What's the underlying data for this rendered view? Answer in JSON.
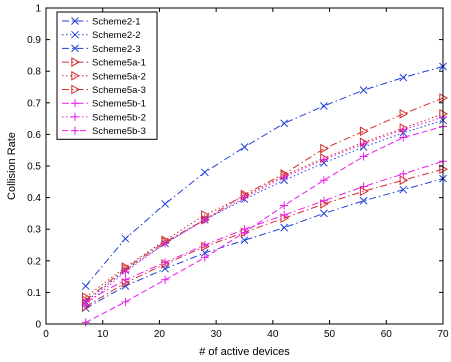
{
  "chart_data": {
    "type": "line",
    "xlabel": "# of active devices",
    "ylabel": "Collision Rate",
    "xlim": [
      0,
      70
    ],
    "ylim": [
      0,
      1
    ],
    "xticks": [
      0,
      10,
      20,
      30,
      40,
      50,
      60,
      70
    ],
    "yticks": [
      0,
      0.1,
      0.2,
      0.3,
      0.4,
      0.5,
      0.6,
      0.7,
      0.8,
      0.9,
      1
    ],
    "grid": false,
    "legend_position": "top-left",
    "x": [
      7,
      14,
      21,
      28,
      35,
      42,
      49,
      56,
      63,
      70
    ],
    "series": [
      {
        "name": "Scheme2-1",
        "color": "#1f3fd8",
        "dash": "dashdot",
        "marker": "x",
        "values": [
          0.12,
          0.27,
          0.38,
          0.48,
          0.56,
          0.635,
          0.69,
          0.74,
          0.78,
          0.815
        ]
      },
      {
        "name": "Scheme2-2",
        "color": "#1f3fd8",
        "dash": "dotted",
        "marker": "x",
        "values": [
          0.07,
          0.17,
          0.255,
          0.33,
          0.395,
          0.455,
          0.51,
          0.56,
          0.605,
          0.645
        ]
      },
      {
        "name": "Scheme2-3",
        "color": "#1f3fd8",
        "dash": "dashdot",
        "marker": "x",
        "values": [
          0.05,
          0.12,
          0.175,
          0.225,
          0.265,
          0.305,
          0.35,
          0.39,
          0.425,
          0.46
        ]
      },
      {
        "name": "Scheme5a-1",
        "color": "#d42a2a",
        "dash": "dashdot",
        "marker": "triangle-right",
        "values": [
          0.075,
          0.175,
          0.26,
          0.33,
          0.41,
          0.475,
          0.555,
          0.61,
          0.665,
          0.715
        ]
      },
      {
        "name": "Scheme5a-2",
        "color": "#d42a2a",
        "dash": "dotted",
        "marker": "triangle-right",
        "values": [
          0.085,
          0.18,
          0.265,
          0.345,
          0.405,
          0.47,
          0.525,
          0.575,
          0.62,
          0.665
        ]
      },
      {
        "name": "Scheme5a-3",
        "color": "#d42a2a",
        "dash": "dashdot",
        "marker": "triangle-right",
        "values": [
          0.055,
          0.13,
          0.19,
          0.245,
          0.29,
          0.335,
          0.38,
          0.42,
          0.455,
          0.49
        ]
      },
      {
        "name": "Scheme5b-1",
        "color": "#e81ce8",
        "dash": "dashdot",
        "marker": "plus",
        "values": [
          0.07,
          0.14,
          0.195,
          0.25,
          0.3,
          0.345,
          0.39,
          0.435,
          0.475,
          0.515
        ]
      },
      {
        "name": "Scheme5b-2",
        "color": "#e81ce8",
        "dash": "dotted",
        "marker": "plus",
        "values": [
          0.06,
          0.165,
          0.255,
          0.33,
          0.4,
          0.465,
          0.52,
          0.57,
          0.615,
          0.655
        ]
      },
      {
        "name": "Scheme5b-3",
        "color": "#e81ce8",
        "dash": "dashed",
        "marker": "plus",
        "values": [
          0.005,
          0.07,
          0.14,
          0.21,
          0.29,
          0.375,
          0.455,
          0.53,
          0.59,
          0.625
        ]
      }
    ]
  }
}
